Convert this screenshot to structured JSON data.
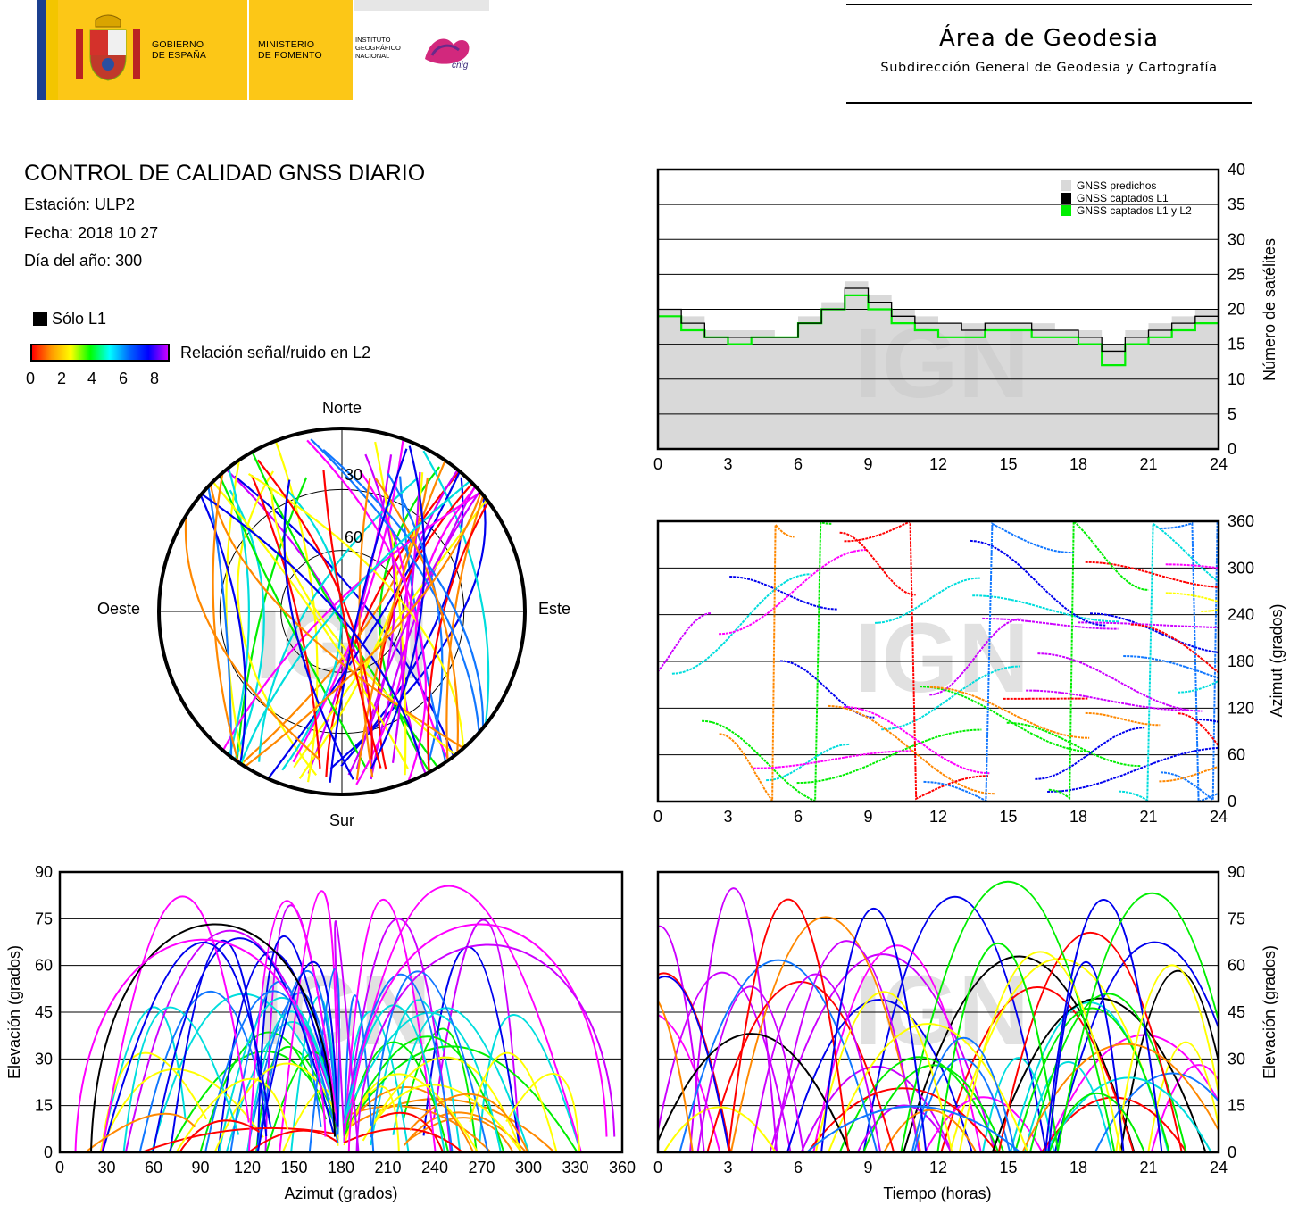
{
  "header": {
    "gobierno": "GOBIERNO\nDE ESPAÑA",
    "ministerio": "MINISTERIO\nDE FOMENTO",
    "instituto": "INSTITUTO\nGEOGRÁFICO\nNACIONAL",
    "cnig": "cnig",
    "area_title": "Área de Geodesia",
    "area_subtitle": "Subdirección General de Geodesia y Cartografía"
  },
  "report": {
    "title": "CONTROL DE CALIDAD GNSS DIARIO",
    "station": "Estación: ULP2",
    "date": "Fecha: 2018 10 27",
    "doy": "Día del año: 300"
  },
  "legend": {
    "l1_only": "Sólo L1",
    "snr_label": "Relación señal/ruido en L2",
    "snr_ticks": [
      "0",
      "2",
      "4",
      "6",
      "8"
    ],
    "snr_colors": [
      "#ff0000",
      "#ff9900",
      "#ffff00",
      "#00ff00",
      "#00ffff",
      "#0066ff",
      "#0000ff",
      "#cc00ff"
    ]
  },
  "watermark": "IGN",
  "colors": {
    "l1": "#000000",
    "predicted": "#d9d9d9",
    "l1l2": "#00ee00",
    "track_palette": [
      "#ff0000",
      "#ff8800",
      "#ffff00",
      "#00ee00",
      "#00dddd",
      "#1177ff",
      "#0000ee",
      "#cc00ff",
      "#ff00ff",
      "#000000"
    ]
  },
  "chart_data": [
    {
      "type": "line",
      "id": "satellites",
      "ylabel": "Número de satélites",
      "xlim": [
        0,
        24
      ],
      "ylim": [
        0,
        40
      ],
      "xticks": [
        "0",
        "3",
        "6",
        "9",
        "12",
        "15",
        "18",
        "21",
        "24"
      ],
      "yticks": [
        "0",
        "5",
        "10",
        "15",
        "20",
        "25",
        "30",
        "35",
        "40"
      ],
      "grid": true,
      "legend_position": "top-right",
      "series": [
        {
          "name": "GNSS predichos",
          "x": [
            0,
            1,
            2,
            3,
            4,
            5,
            6,
            7,
            8,
            9,
            10,
            11,
            12,
            13,
            14,
            15,
            16,
            17,
            18,
            19,
            20,
            21,
            22,
            23,
            24
          ],
          "y": [
            20,
            19,
            17,
            17,
            17,
            16,
            19,
            21,
            24,
            22,
            20,
            19,
            18,
            18,
            18,
            18,
            18,
            17,
            17,
            15,
            17,
            18,
            19,
            20,
            20
          ]
        },
        {
          "name": "GNSS captados L1",
          "x": [
            0,
            1,
            2,
            3,
            4,
            5,
            6,
            7,
            8,
            9,
            10,
            11,
            12,
            13,
            14,
            15,
            16,
            17,
            18,
            19,
            20,
            21,
            22,
            23,
            24
          ],
          "y": [
            20,
            18,
            16,
            16,
            16,
            16,
            18,
            20,
            23,
            21,
            19,
            18,
            18,
            17,
            18,
            18,
            17,
            17,
            16,
            14,
            16,
            17,
            18,
            19,
            19
          ]
        },
        {
          "name": "GNSS captados L1 y L2",
          "x": [
            0,
            1,
            2,
            3,
            4,
            5,
            6,
            7,
            8,
            9,
            10,
            11,
            12,
            13,
            14,
            15,
            16,
            17,
            18,
            19,
            20,
            21,
            22,
            23,
            24
          ],
          "y": [
            19,
            17,
            16,
            15,
            16,
            16,
            18,
            20,
            22,
            20,
            18,
            17,
            16,
            16,
            17,
            17,
            16,
            16,
            15,
            12,
            15,
            16,
            17,
            18,
            18
          ]
        }
      ]
    },
    {
      "type": "scatter",
      "id": "azimuth-time",
      "ylabel": "Azimut (grados)",
      "xlim": [
        0,
        24
      ],
      "ylim": [
        0,
        360
      ],
      "xticks": [
        "0",
        "3",
        "6",
        "9",
        "12",
        "15",
        "18",
        "21",
        "24"
      ],
      "yticks": [
        "0",
        "60",
        "120",
        "180",
        "240",
        "300",
        "360"
      ],
      "grid": true
    },
    {
      "type": "scatter",
      "id": "skyplot",
      "directions": {
        "north": "Norte",
        "south": "Sur",
        "east": "Este",
        "west": "Oeste"
      },
      "rings": [
        "30",
        "60"
      ]
    },
    {
      "type": "scatter",
      "id": "elevation-azimuth",
      "xlabel": "Azimut (grados)",
      "ylabel": "Elevación (grados)",
      "xlim": [
        0,
        360
      ],
      "ylim": [
        0,
        90
      ],
      "xticks": [
        "0",
        "30",
        "60",
        "90",
        "120",
        "150",
        "180",
        "210",
        "240",
        "270",
        "300",
        "330",
        "360"
      ],
      "yticks": [
        "0",
        "15",
        "30",
        "45",
        "60",
        "75",
        "90"
      ],
      "grid": true
    },
    {
      "type": "scatter",
      "id": "elevation-time",
      "xlabel": "Tiempo (horas)",
      "ylabel": "Elevación (grados)",
      "xlim": [
        0,
        24
      ],
      "ylim": [
        0,
        90
      ],
      "xticks": [
        "0",
        "3",
        "6",
        "9",
        "12",
        "15",
        "18",
        "21",
        "24"
      ],
      "yticks": [
        "0",
        "15",
        "30",
        "45",
        "60",
        "75",
        "90"
      ],
      "grid": true
    }
  ]
}
